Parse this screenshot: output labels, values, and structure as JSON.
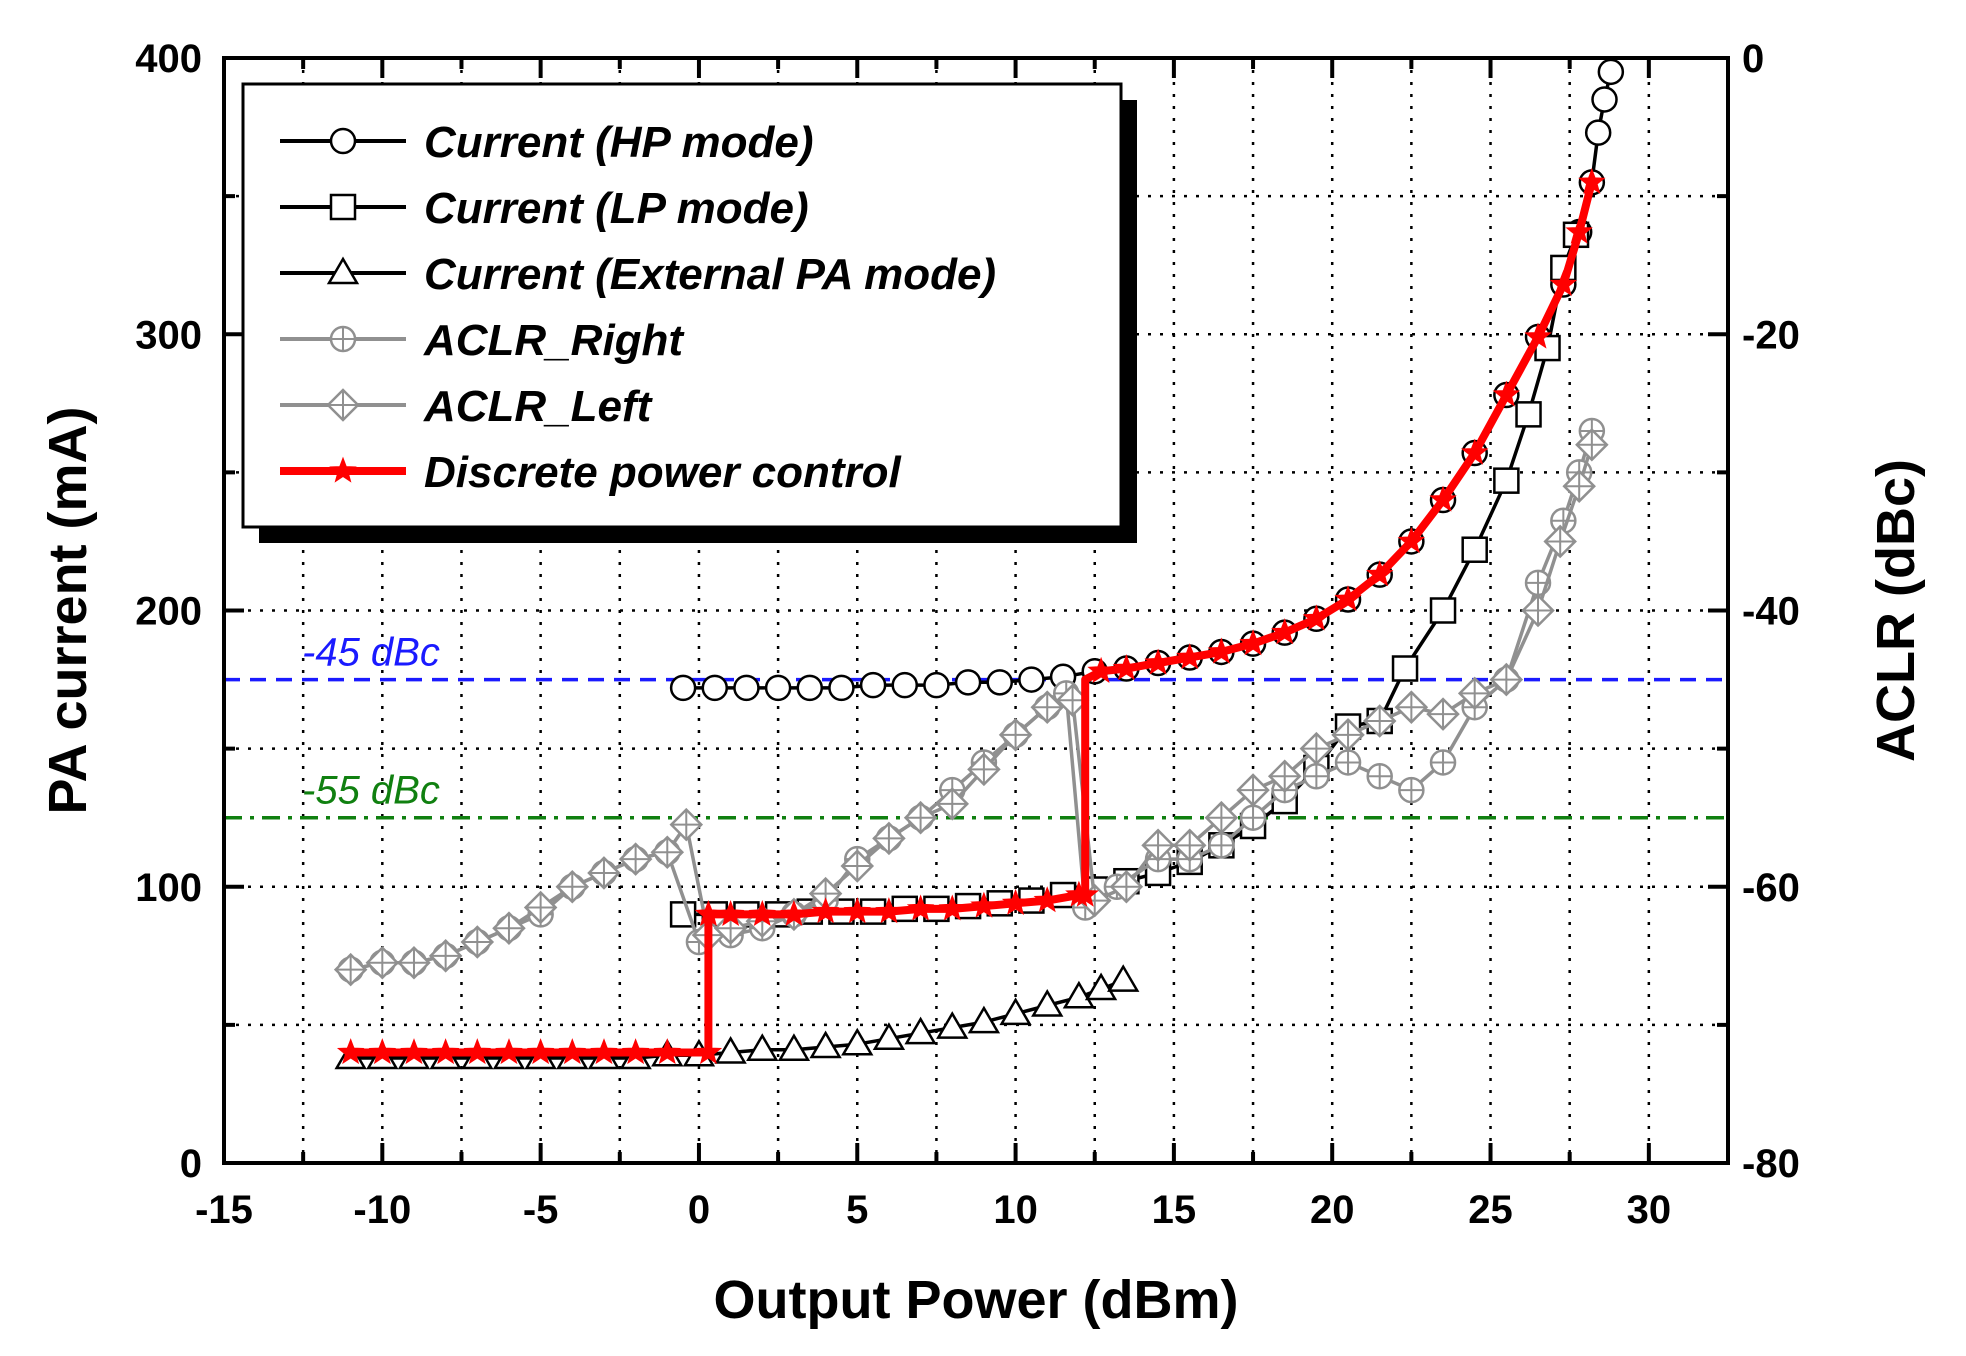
{
  "chart_data": {
    "type": "line",
    "x": {
      "label": "Output Power (dBm)",
      "range": [
        -15,
        32.5
      ],
      "ticks": [
        -15,
        -10,
        -5,
        0,
        5,
        10,
        15,
        20,
        25,
        30
      ]
    },
    "y_left": {
      "label": "PA current (mA)",
      "range": [
        0,
        400
      ],
      "ticks": [
        0,
        100,
        200,
        300,
        400
      ]
    },
    "y_right": {
      "label": "ACLR (dBc)",
      "range": [
        -80,
        0
      ],
      "ticks": [
        -80,
        -60,
        -40,
        -20,
        0
      ]
    },
    "grid": true,
    "legend_position": "top-left",
    "reference_lines": [
      {
        "label": "-45 dBc",
        "value": -45,
        "axis": "right",
        "color": "#1a1aff",
        "style": "dashed"
      },
      {
        "label": "-55 dBc",
        "value": -55,
        "axis": "right",
        "color": "#108010",
        "style": "dashdot"
      }
    ],
    "series": [
      {
        "name": "Current (HP mode)",
        "axis": "left",
        "marker": "circle",
        "color": "#000000",
        "points": [
          [
            -0.5,
            172
          ],
          [
            0.5,
            172
          ],
          [
            1.5,
            172
          ],
          [
            2.5,
            172
          ],
          [
            3.5,
            172
          ],
          [
            4.5,
            172
          ],
          [
            5.5,
            173
          ],
          [
            6.5,
            173
          ],
          [
            7.5,
            173
          ],
          [
            8.5,
            174
          ],
          [
            9.5,
            174
          ],
          [
            10.5,
            175
          ],
          [
            11.5,
            176
          ],
          [
            12.5,
            178
          ],
          [
            13.5,
            179
          ],
          [
            14.5,
            181
          ],
          [
            15.5,
            183
          ],
          [
            16.5,
            185
          ],
          [
            17.5,
            188
          ],
          [
            18.5,
            192
          ],
          [
            19.5,
            197
          ],
          [
            20.5,
            204
          ],
          [
            21.5,
            213
          ],
          [
            22.5,
            225
          ],
          [
            23.5,
            240
          ],
          [
            24.5,
            257
          ],
          [
            25.5,
            278
          ],
          [
            26.5,
            299
          ],
          [
            27.3,
            318
          ],
          [
            27.8,
            337
          ],
          [
            28.2,
            355
          ],
          [
            28.4,
            373
          ],
          [
            28.6,
            385
          ],
          [
            28.8,
            395
          ]
        ]
      },
      {
        "name": "Current (LP mode)",
        "axis": "left",
        "marker": "square",
        "color": "#000000",
        "points": [
          [
            -0.5,
            90
          ],
          [
            0.5,
            90
          ],
          [
            1.5,
            90
          ],
          [
            2.5,
            90
          ],
          [
            3.5,
            91
          ],
          [
            4.5,
            91
          ],
          [
            5.5,
            91
          ],
          [
            6.5,
            92
          ],
          [
            7.5,
            92
          ],
          [
            8.5,
            93
          ],
          [
            9.5,
            94
          ],
          [
            10.5,
            95
          ],
          [
            11.5,
            97
          ],
          [
            12.5,
            99
          ],
          [
            13.5,
            102
          ],
          [
            14.5,
            105
          ],
          [
            15.5,
            109
          ],
          [
            16.5,
            115
          ],
          [
            17.5,
            122
          ],
          [
            18.5,
            131
          ],
          [
            19.5,
            143
          ],
          [
            20.5,
            158
          ],
          [
            21.5,
            160
          ],
          [
            22.3,
            179
          ],
          [
            23.5,
            200
          ],
          [
            24.5,
            222
          ],
          [
            25.5,
            247
          ],
          [
            26.2,
            271
          ],
          [
            26.8,
            295
          ],
          [
            27.3,
            324
          ],
          [
            27.7,
            336
          ]
        ]
      },
      {
        "name": "Current (External PA mode)",
        "axis": "left",
        "marker": "triangle",
        "color": "#000000",
        "points": [
          [
            -11,
            38
          ],
          [
            -10,
            38
          ],
          [
            -9,
            38
          ],
          [
            -8,
            38
          ],
          [
            -7,
            38
          ],
          [
            -6,
            38
          ],
          [
            -5,
            38
          ],
          [
            -4,
            38
          ],
          [
            -3,
            38
          ],
          [
            -2,
            38
          ],
          [
            -1,
            39
          ],
          [
            0,
            39
          ],
          [
            1,
            40
          ],
          [
            2,
            41
          ],
          [
            3,
            41
          ],
          [
            4,
            42
          ],
          [
            5,
            43
          ],
          [
            6,
            45
          ],
          [
            7,
            47
          ],
          [
            8,
            49
          ],
          [
            9,
            51
          ],
          [
            10,
            54
          ],
          [
            11,
            57
          ],
          [
            12,
            60
          ],
          [
            12.7,
            63
          ],
          [
            13.4,
            66
          ]
        ]
      },
      {
        "name": "ACLR_Right",
        "axis": "right",
        "marker": "circle-plus",
        "color": "#909090",
        "points": [
          [
            -11,
            -66
          ],
          [
            -10,
            -65.5
          ],
          [
            -9,
            -65.5
          ],
          [
            -8,
            -65
          ],
          [
            -7,
            -64
          ],
          [
            -6,
            -63
          ],
          [
            -5,
            -62
          ],
          [
            -4,
            -60
          ],
          [
            -3,
            -59
          ],
          [
            -2,
            -58
          ],
          [
            -1,
            -57.5
          ],
          [
            0,
            -64
          ],
          [
            1,
            -63.5
          ],
          [
            2,
            -63
          ],
          [
            3,
            -62
          ],
          [
            4,
            -61
          ],
          [
            5,
            -58
          ],
          [
            6,
            -56.5
          ],
          [
            7,
            -55
          ],
          [
            8,
            -53
          ],
          [
            9,
            -51
          ],
          [
            10,
            -49
          ],
          [
            11,
            -47
          ],
          [
            11.6,
            -46
          ],
          [
            12.2,
            -61.5
          ],
          [
            13.2,
            -60
          ],
          [
            14.5,
            -58
          ],
          [
            15.5,
            -58
          ],
          [
            16.5,
            -57
          ],
          [
            17.5,
            -55
          ],
          [
            18.5,
            -53
          ],
          [
            19.5,
            -52
          ],
          [
            20.5,
            -51
          ],
          [
            21.5,
            -52
          ],
          [
            22.5,
            -53
          ],
          [
            23.5,
            -51
          ],
          [
            24.5,
            -47
          ],
          [
            25.5,
            -45
          ],
          [
            26.5,
            -38
          ],
          [
            27.3,
            -33.5
          ],
          [
            27.8,
            -30
          ],
          [
            28.2,
            -27
          ]
        ]
      },
      {
        "name": "ACLR_Left",
        "axis": "right",
        "marker": "diamond-plus",
        "color": "#909090",
        "points": [
          [
            -11,
            -66
          ],
          [
            -10,
            -65.5
          ],
          [
            -9,
            -65.5
          ],
          [
            -8,
            -65
          ],
          [
            -7,
            -64
          ],
          [
            -6,
            -63
          ],
          [
            -5,
            -61.5
          ],
          [
            -4,
            -60
          ],
          [
            -3,
            -59
          ],
          [
            -2,
            -58
          ],
          [
            -1,
            -57.5
          ],
          [
            -0.4,
            -55.5
          ],
          [
            0.3,
            -63.5
          ],
          [
            1,
            -63
          ],
          [
            2,
            -62.5
          ],
          [
            3,
            -62
          ],
          [
            4,
            -60.5
          ],
          [
            5,
            -58.5
          ],
          [
            6,
            -56.5
          ],
          [
            7,
            -55
          ],
          [
            8,
            -54
          ],
          [
            9,
            -51.5
          ],
          [
            10,
            -49
          ],
          [
            11,
            -47
          ],
          [
            11.8,
            -46.5
          ],
          [
            12.5,
            -61
          ],
          [
            13.5,
            -60
          ],
          [
            14.5,
            -57
          ],
          [
            15.5,
            -57
          ],
          [
            16.5,
            -55
          ],
          [
            17.5,
            -53
          ],
          [
            18.5,
            -52
          ],
          [
            19.5,
            -50
          ],
          [
            20.5,
            -49
          ],
          [
            21.5,
            -48
          ],
          [
            22.5,
            -47
          ],
          [
            23.5,
            -47.5
          ],
          [
            24.5,
            -46
          ],
          [
            25.5,
            -45
          ],
          [
            26.5,
            -40
          ],
          [
            27.2,
            -35
          ],
          [
            27.8,
            -31
          ],
          [
            28.2,
            -28
          ]
        ]
      },
      {
        "name": "Discrete power control",
        "axis": "left",
        "marker": "star",
        "color": "#ff0000",
        "points": [
          [
            -11,
            40
          ],
          [
            -10,
            40
          ],
          [
            -9,
            40
          ],
          [
            -8,
            40
          ],
          [
            -7,
            40
          ],
          [
            -6,
            40
          ],
          [
            -5,
            40
          ],
          [
            -4,
            40
          ],
          [
            -3,
            40
          ],
          [
            -2,
            40
          ],
          [
            -1,
            40
          ],
          [
            0.3,
            40
          ],
          [
            0.3,
            90
          ],
          [
            1,
            90
          ],
          [
            2,
            90
          ],
          [
            3,
            90
          ],
          [
            4,
            91
          ],
          [
            5,
            91
          ],
          [
            6,
            91
          ],
          [
            7,
            92
          ],
          [
            8,
            92
          ],
          [
            9,
            93
          ],
          [
            10,
            94
          ],
          [
            11,
            95
          ],
          [
            12,
            97
          ],
          [
            12.2,
            97
          ],
          [
            12.2,
            175
          ],
          [
            12.7,
            178
          ],
          [
            13.5,
            179
          ],
          [
            14.5,
            181
          ],
          [
            15.5,
            183
          ],
          [
            16.5,
            185
          ],
          [
            17.5,
            188
          ],
          [
            18.5,
            192
          ],
          [
            19.5,
            197
          ],
          [
            20.5,
            204
          ],
          [
            21.5,
            213
          ],
          [
            22.5,
            225
          ],
          [
            23.5,
            240
          ],
          [
            24.5,
            257
          ],
          [
            25.5,
            278
          ],
          [
            26.5,
            299
          ],
          [
            27.3,
            318
          ],
          [
            27.8,
            337
          ],
          [
            28.2,
            355
          ]
        ]
      }
    ]
  }
}
